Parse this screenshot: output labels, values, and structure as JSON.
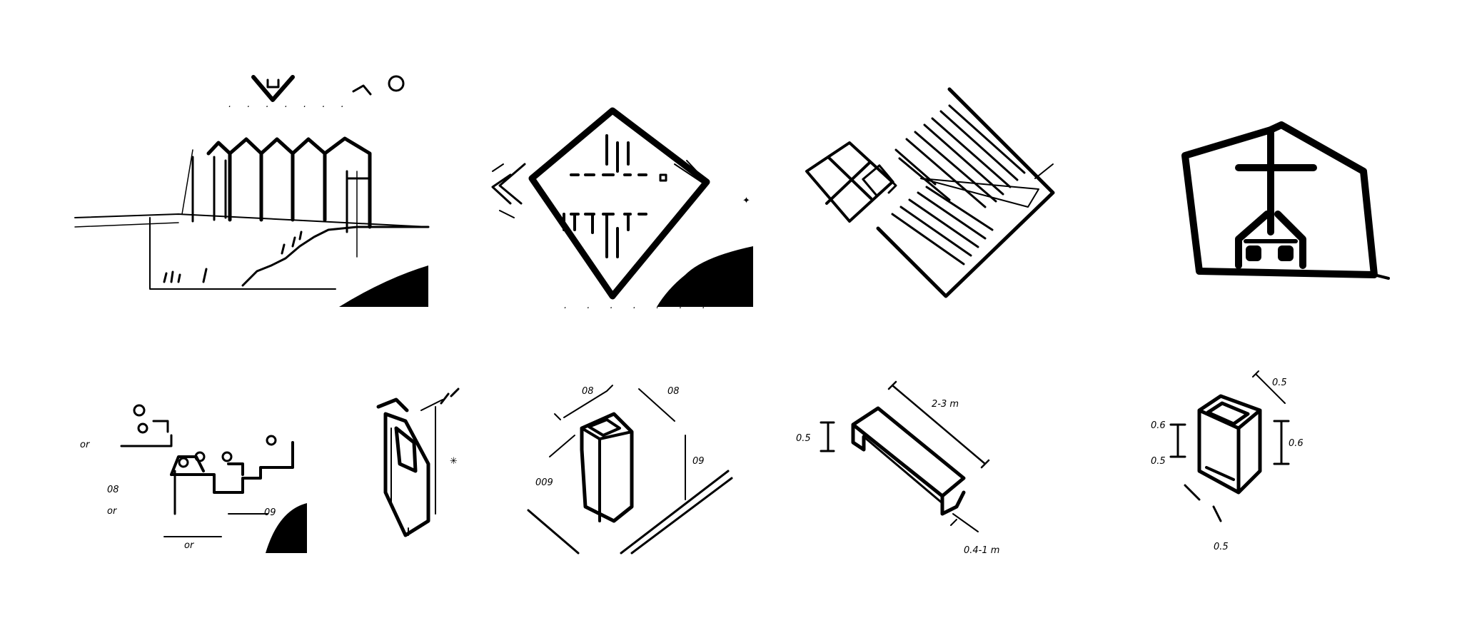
{
  "sheet": {
    "background": "#ffffff",
    "ink": "#000000",
    "panels": [
      {
        "name": "section-sketch",
        "row": 1
      },
      {
        "name": "diamond-plan-sketch",
        "row": 1
      },
      {
        "name": "seating-plan-sketch",
        "row": 1
      },
      {
        "name": "cross-icon-sketch",
        "row": 1
      },
      {
        "name": "seating-steps-sketch",
        "row": 2
      },
      {
        "name": "light-shaft-sketch",
        "row": 2
      },
      {
        "name": "box-column-sketch",
        "row": 2
      },
      {
        "name": "bench-sketch",
        "row": 2
      },
      {
        "name": "font-box-sketch",
        "row": 2
      }
    ]
  },
  "annotations": {
    "steps_a": "or",
    "steps_b": "08",
    "steps_c": "or",
    "steps_d": "09",
    "steps_e": "or",
    "column_a": "08",
    "column_b": "08",
    "column_c": "09",
    "column_d": "009",
    "bench_a": "2-3 m",
    "bench_b": "0.5",
    "bench_c": "0.4-1 m",
    "font_a": "0.5",
    "font_b": "0.6",
    "font_c": "0.6",
    "font_d": "0.5",
    "font_e": "0.5"
  }
}
